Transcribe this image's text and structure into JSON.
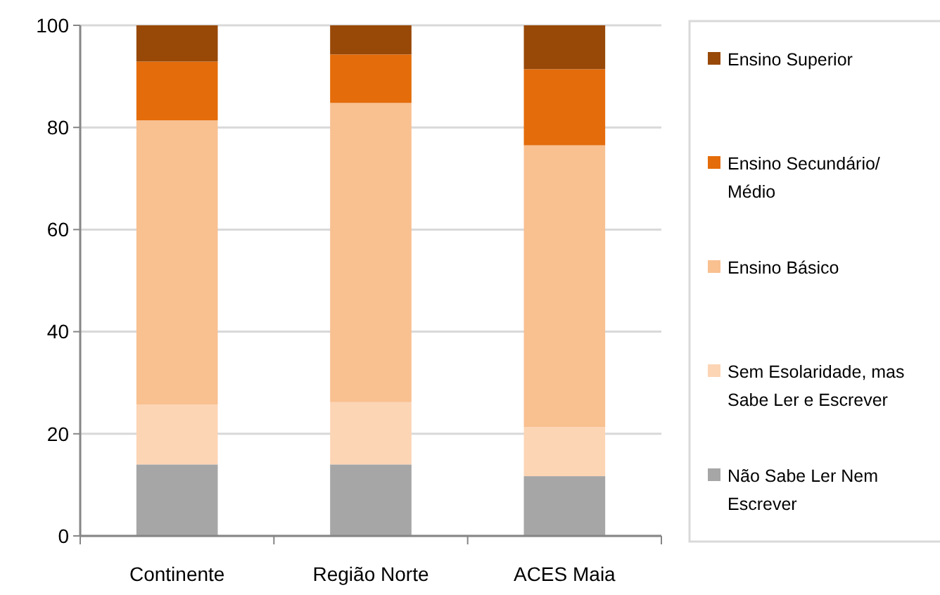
{
  "chart_data": {
    "type": "bar",
    "stacked": true,
    "categories": [
      "Continente",
      "Região Norte",
      "ACES Maia"
    ],
    "series": [
      {
        "name": "Não Sabe Ler Nem Escrever",
        "color": "#a6a6a6",
        "values": [
          14.0,
          14.0,
          11.7
        ]
      },
      {
        "name": "Sem Esolaridade, mas Sabe Ler e Escrever",
        "color": "#fcd5b5",
        "values": [
          11.7,
          12.2,
          9.6
        ]
      },
      {
        "name": "Ensino Básico",
        "color": "#f9c090",
        "values": [
          55.7,
          58.6,
          55.2
        ]
      },
      {
        "name": "Ensino Secundário/ Médio",
        "color": "#e46c0a",
        "values": [
          11.5,
          9.5,
          14.9
        ]
      },
      {
        "name": "Ensino Superior",
        "color": "#984807",
        "values": [
          7.1,
          5.7,
          8.6
        ]
      }
    ],
    "ylim": [
      0,
      100
    ],
    "yticks": [
      0,
      20,
      40,
      60,
      80,
      100
    ],
    "grid": "y",
    "legend": "right"
  }
}
